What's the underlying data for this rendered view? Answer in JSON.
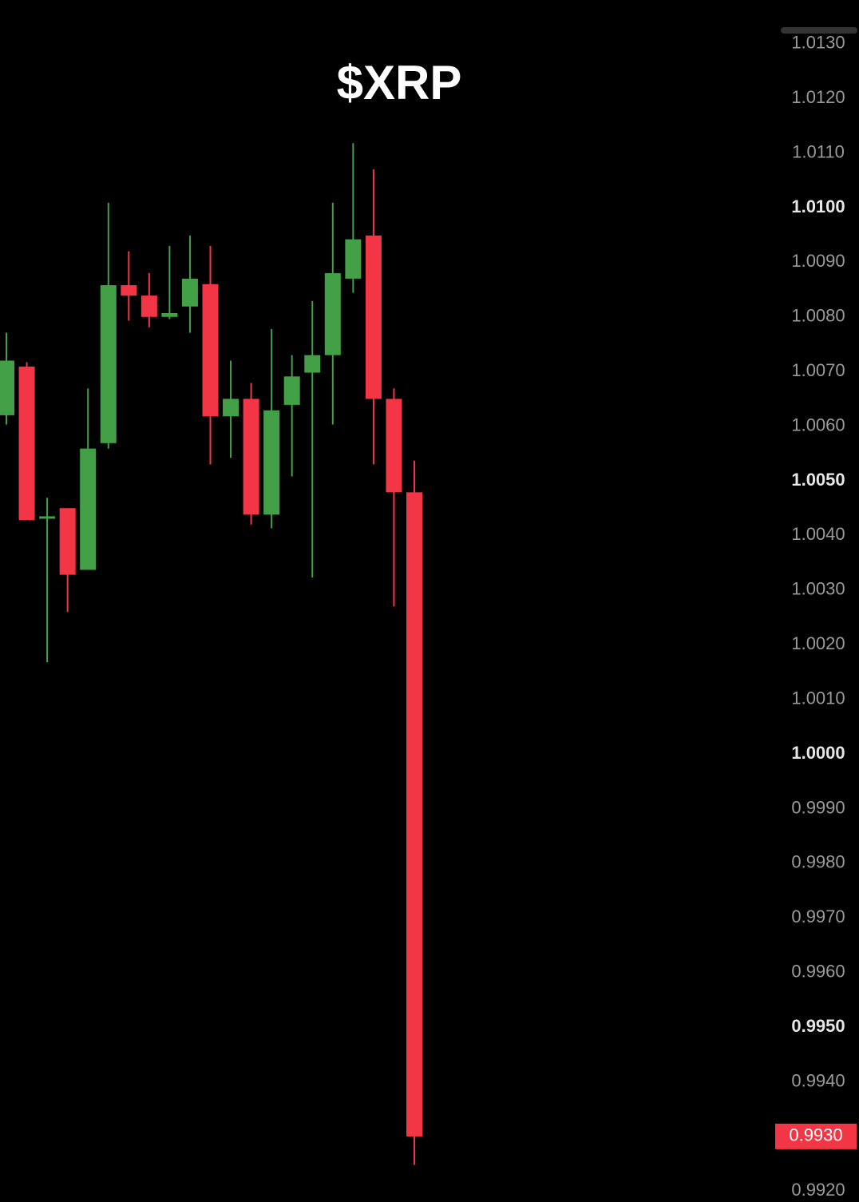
{
  "chart_data": {
    "type": "candlestick",
    "title": "$XRP",
    "up_color": "#43a047",
    "down_color": "#f23645",
    "open": [
      1.0062,
      1.00709,
      1.00431,
      1.0045,
      1.00337,
      1.00569,
      1.00858,
      1.00839,
      1.008,
      1.00819,
      1.0086,
      1.00618,
      1.0065,
      1.00438,
      1.00639,
      1.00698,
      1.0073,
      1.0087,
      1.00949,
      1.0065,
      1.00479
    ],
    "high": [
      1.00771,
      1.00717,
      1.00469,
      1.0045,
      1.00669,
      1.01009,
      1.0092,
      1.0088,
      1.0093,
      1.00949,
      1.0093,
      1.0072,
      1.00679,
      1.00778,
      1.0073,
      1.00829,
      1.01009,
      1.01118,
      1.0107,
      1.00669,
      1.00537
    ],
    "low": [
      1.00603,
      1.00428,
      1.00168,
      1.0026,
      1.00337,
      1.00559,
      1.00793,
      1.00781,
      1.00796,
      1.00771,
      1.0053,
      1.00542,
      1.0042,
      1.00413,
      1.00508,
      1.00323,
      1.00603,
      1.00844,
      1.0053,
      1.0027,
      0.99248
    ],
    "close": [
      1.0072,
      1.00428,
      1.00435,
      1.00328,
      1.00559,
      1.00858,
      1.00839,
      1.008,
      1.00807,
      1.0087,
      1.00618,
      1.0065,
      1.00438,
      1.00629,
      1.00691,
      1.0073,
      1.0088,
      1.00942,
      1.0065,
      1.00479,
      0.993
    ],
    "ylim": [
      0.9918,
      1.0138
    ],
    "yticks": [
      {
        "value": 1.013,
        "label": "1.0130"
      },
      {
        "value": 1.012,
        "label": "1.0120"
      },
      {
        "value": 1.011,
        "label": "1.0110"
      },
      {
        "value": 1.01,
        "label": "1.0100",
        "bold": true
      },
      {
        "value": 1.009,
        "label": "1.0090"
      },
      {
        "value": 1.008,
        "label": "1.0080"
      },
      {
        "value": 1.007,
        "label": "1.0070"
      },
      {
        "value": 1.006,
        "label": "1.0060"
      },
      {
        "value": 1.005,
        "label": "1.0050",
        "bold": true
      },
      {
        "value": 1.004,
        "label": "1.0040"
      },
      {
        "value": 1.003,
        "label": "1.0030"
      },
      {
        "value": 1.002,
        "label": "1.0020"
      },
      {
        "value": 1.001,
        "label": "1.0010"
      },
      {
        "value": 1,
        "label": "1.0000",
        "bold": true
      },
      {
        "value": 0.999,
        "label": "0.9990"
      },
      {
        "value": 0.998,
        "label": "0.9980"
      },
      {
        "value": 0.997,
        "label": "0.9970"
      },
      {
        "value": 0.996,
        "label": "0.9960"
      },
      {
        "value": 0.995,
        "label": "0.9950",
        "bold": true
      },
      {
        "value": 0.994,
        "label": "0.9940"
      },
      {
        "value": 0.992,
        "label": "0.9920"
      }
    ],
    "last_price": {
      "value": 0.993,
      "label": "0.9930"
    }
  }
}
